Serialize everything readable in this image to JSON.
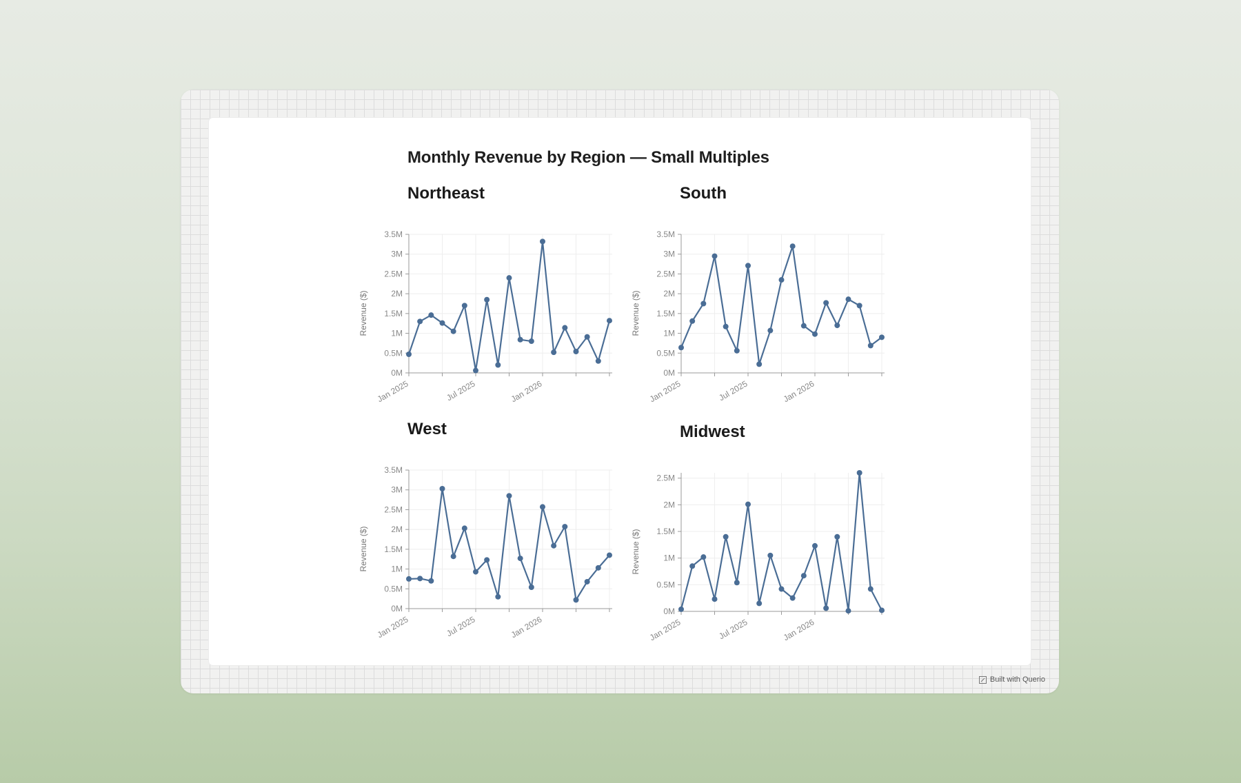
{
  "title": "Monthly Revenue by Region — Small Multiples",
  "credit": "Built with Querio",
  "colors": {
    "line": "#4a6d95",
    "grid": "#eeeeee",
    "tick": "#888888",
    "axis": "#999999"
  },
  "chart_data": [
    {
      "type": "line",
      "title": "Northeast",
      "ylabel": "Revenue ($)",
      "xlabel": "",
      "ylim": [
        0,
        3500000
      ],
      "yticks": [
        "0M",
        "0.5M",
        "1M",
        "1.5M",
        "2M",
        "2.5M",
        "3M",
        "3.5M"
      ],
      "xtick_labels": [
        "Jan 2025",
        "Jul 2025",
        "Jan 2026"
      ],
      "x": [
        "2025-01",
        "2025-02",
        "2025-03",
        "2025-04",
        "2025-05",
        "2025-06",
        "2025-07",
        "2025-08",
        "2025-09",
        "2025-10",
        "2025-11",
        "2025-12",
        "2026-01",
        "2026-02",
        "2026-03",
        "2026-04",
        "2026-05",
        "2026-06",
        "2026-07"
      ],
      "values": [
        470000,
        1300000,
        1460000,
        1260000,
        1050000,
        1700000,
        60000,
        1850000,
        200000,
        2400000,
        840000,
        800000,
        3320000,
        520000,
        1140000,
        540000,
        910000,
        300000,
        1320000
      ]
    },
    {
      "type": "line",
      "title": "South",
      "ylabel": "Revenue ($)",
      "xlabel": "",
      "ylim": [
        0,
        3500000
      ],
      "yticks": [
        "0M",
        "0.5M",
        "1M",
        "1.5M",
        "2M",
        "2.5M",
        "3M",
        "3.5M"
      ],
      "xtick_labels": [
        "Jan 2025",
        "Jul 2025",
        "Jan 2026"
      ],
      "x": [
        "2025-01",
        "2025-02",
        "2025-03",
        "2025-04",
        "2025-05",
        "2025-06",
        "2025-07",
        "2025-08",
        "2025-09",
        "2025-10",
        "2025-11",
        "2025-12",
        "2026-01",
        "2026-02",
        "2026-03",
        "2026-04",
        "2026-05",
        "2026-06",
        "2026-07"
      ],
      "values": [
        640000,
        1310000,
        1750000,
        2950000,
        1170000,
        560000,
        2710000,
        220000,
        1070000,
        2350000,
        3200000,
        1190000,
        980000,
        1770000,
        1200000,
        1860000,
        1700000,
        690000,
        900000
      ]
    },
    {
      "type": "line",
      "title": "West",
      "ylabel": "Revenue ($)",
      "xlabel": "",
      "ylim": [
        0,
        3500000
      ],
      "yticks": [
        "0M",
        "0.5M",
        "1M",
        "1.5M",
        "2M",
        "2.5M",
        "3M",
        "3.5M"
      ],
      "xtick_labels": [
        "Jan 2025",
        "Jul 2025",
        "Jan 2026"
      ],
      "x": [
        "2025-01",
        "2025-02",
        "2025-03",
        "2025-04",
        "2025-05",
        "2025-06",
        "2025-07",
        "2025-08",
        "2025-09",
        "2025-10",
        "2025-11",
        "2025-12",
        "2026-01",
        "2026-02",
        "2026-03",
        "2026-04",
        "2026-05",
        "2026-06",
        "2026-07"
      ],
      "values": [
        750000,
        760000,
        700000,
        3030000,
        1320000,
        2030000,
        930000,
        1230000,
        300000,
        2850000,
        1270000,
        540000,
        2570000,
        1590000,
        2070000,
        220000,
        680000,
        1030000,
        1350000
      ]
    },
    {
      "type": "line",
      "title": "Midwest",
      "ylabel": "Revenue ($)",
      "xlabel": "",
      "ylim": [
        0,
        2600000
      ],
      "yticks": [
        "0M",
        "0.5M",
        "1M",
        "1.5M",
        "2M",
        "2.5M"
      ],
      "xtick_labels": [
        "Jan 2025",
        "Jul 2025",
        "Jan 2026"
      ],
      "x": [
        "2025-01",
        "2025-02",
        "2025-03",
        "2025-04",
        "2025-05",
        "2025-06",
        "2025-07",
        "2025-08",
        "2025-09",
        "2025-10",
        "2025-11",
        "2025-12",
        "2026-01",
        "2026-02",
        "2026-03",
        "2026-04",
        "2026-05",
        "2026-06",
        "2026-07"
      ],
      "values": [
        40000,
        850000,
        1020000,
        230000,
        1400000,
        540000,
        2010000,
        150000,
        1050000,
        420000,
        250000,
        670000,
        1230000,
        60000,
        1400000,
        10000,
        2600000,
        420000,
        20000
      ]
    }
  ]
}
